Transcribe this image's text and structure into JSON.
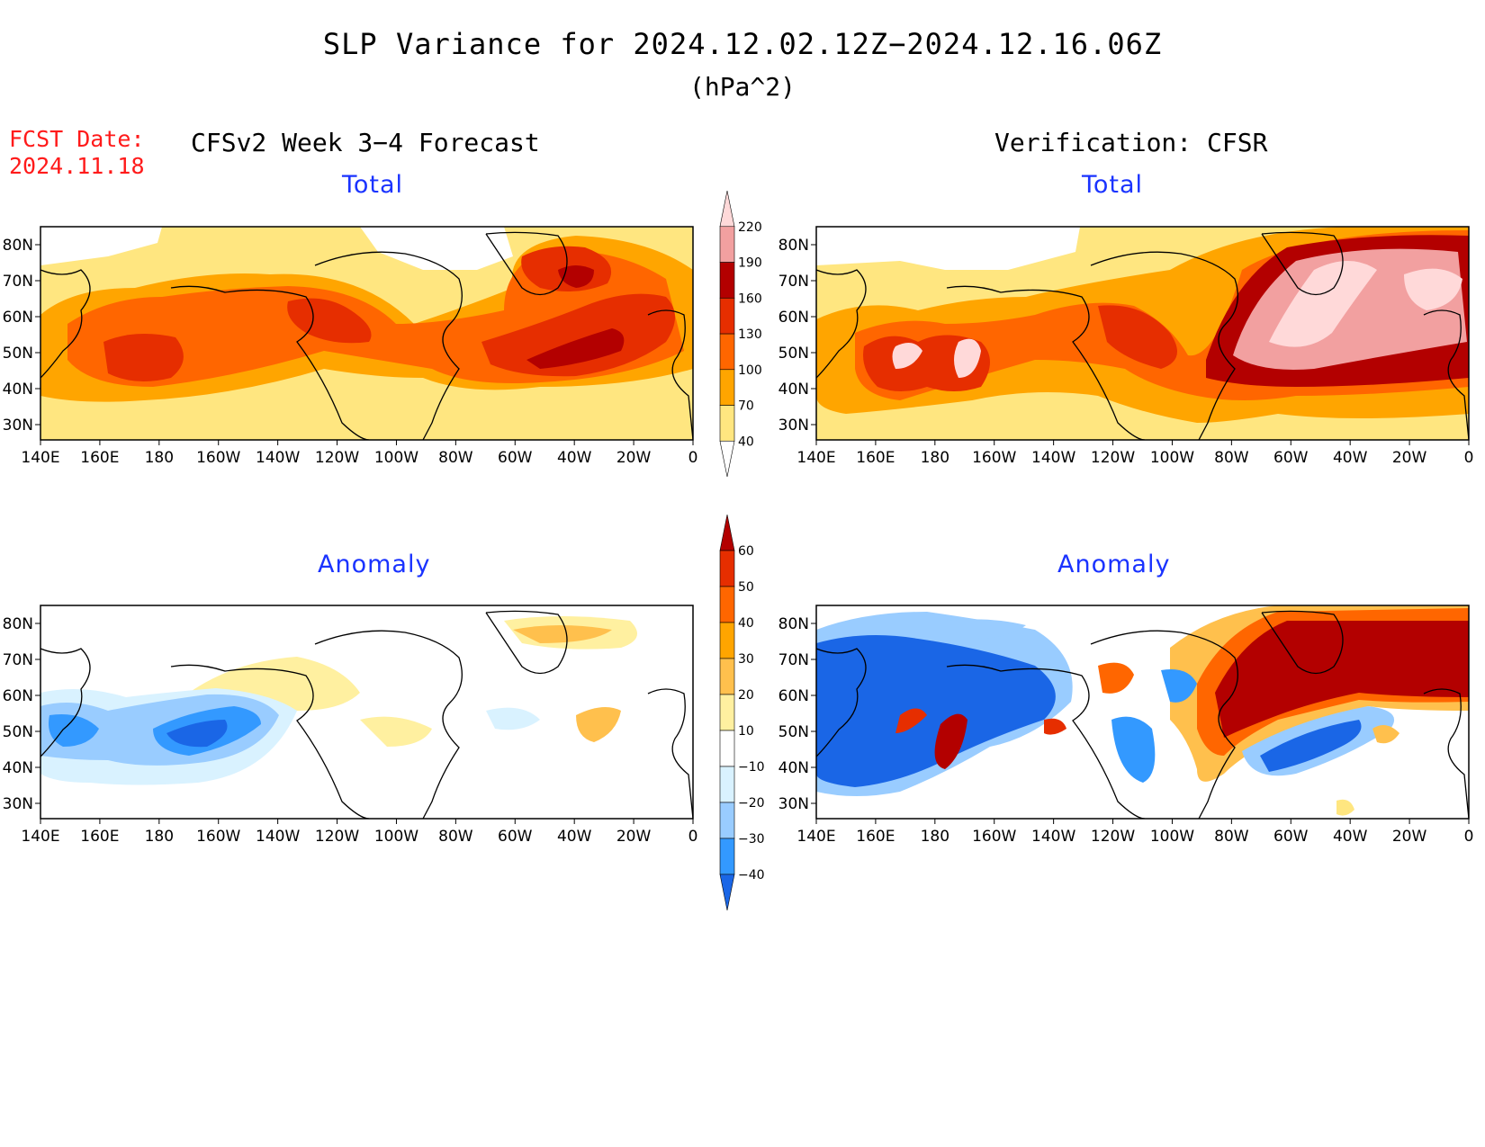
{
  "title": "SLP Variance for 2024.12.02.12Z−2024.12.16.06Z",
  "units": "(hPa^2)",
  "fcst_label": "FCST Date:",
  "fcst_date": "2024.11.18",
  "forecast_header": "CFSv2 Week 3−4 Forecast",
  "verification_header": "Verification: CFSR",
  "panels": {
    "total_label": "Total",
    "anomaly_label": "Anomaly"
  },
  "axes": {
    "lon_ticks": [
      "140E",
      "160E",
      "180",
      "160W",
      "140W",
      "120W",
      "100W",
      "80W",
      "60W",
      "40W",
      "20W",
      "0"
    ],
    "lat_ticks": [
      "80N",
      "70N",
      "60N",
      "50N",
      "40N",
      "30N"
    ]
  },
  "total_colorbar": {
    "levels": [
      "40",
      "70",
      "100",
      "130",
      "160",
      "190",
      "220"
    ],
    "colors": [
      "#ffffff",
      "#ffe680",
      "#ffa500",
      "#ff6600",
      "#e62e00",
      "#b30000",
      "#f2a0a0",
      "#ffd9d9"
    ]
  },
  "anomaly_colorbar": {
    "levels": [
      "60",
      "50",
      "40",
      "30",
      "20",
      "10",
      "−10",
      "−20",
      "−30",
      "−40"
    ],
    "colors": [
      "#b30000",
      "#e62e00",
      "#ff6600",
      "#ffa500",
      "#ffc04d",
      "#fff0a0",
      "#ffffff",
      "#d9f2ff",
      "#99ccff",
      "#3399ff",
      "#1a66e6"
    ]
  }
}
